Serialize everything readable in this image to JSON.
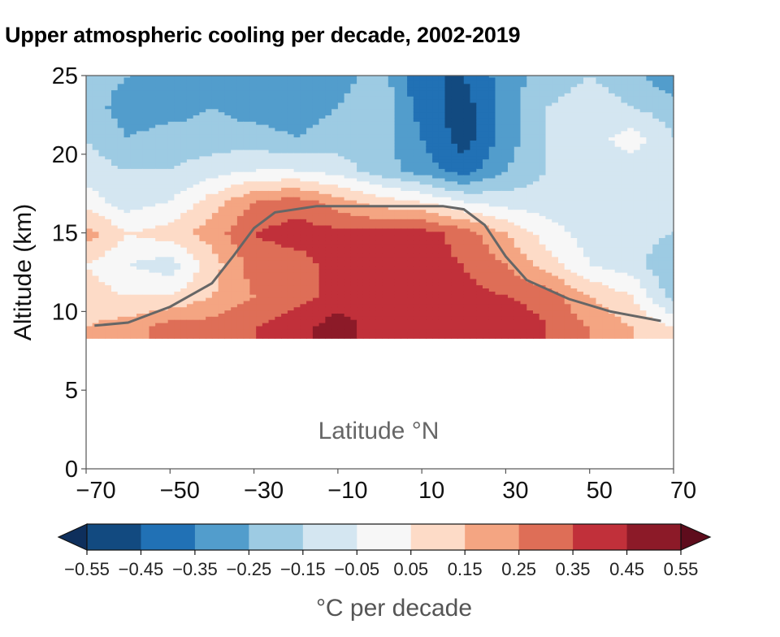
{
  "chart_data": {
    "type": "heatmap",
    "title": "Upper atmospheric cooling per decade, 2002-2019",
    "xlabel": "Latitude °N",
    "ylabel": "Altitude (km)",
    "xlim": [
      -70,
      70
    ],
    "ylim": [
      0,
      25
    ],
    "xticks": [
      "−70",
      "−50",
      "−30",
      "−10",
      "10",
      "30",
      "50",
      "70"
    ],
    "xtick_values": [
      -70,
      -50,
      -30,
      -10,
      10,
      30,
      50,
      70
    ],
    "yticks": [
      "0",
      "5",
      "10",
      "15",
      "20",
      "25"
    ],
    "ytick_values": [
      0,
      5,
      10,
      15,
      20,
      25
    ],
    "data_altitude_min": 8.3,
    "grid": false,
    "latitudes": [
      -70,
      -60,
      -50,
      -40,
      -30,
      -20,
      -10,
      0,
      10,
      20,
      30,
      40,
      50,
      60,
      70
    ],
    "altitudes": [
      25,
      23,
      21,
      19,
      17,
      15,
      13,
      11,
      9
    ],
    "values": [
      [
        -0.2,
        -0.25,
        -0.3,
        -0.3,
        -0.35,
        -0.35,
        -0.3,
        -0.2,
        -0.45,
        -0.45,
        -0.3,
        -0.2,
        -0.15,
        -0.2,
        -0.35
      ],
      [
        -0.2,
        -0.3,
        -0.3,
        -0.25,
        -0.3,
        -0.3,
        -0.25,
        -0.15,
        -0.4,
        -0.5,
        -0.3,
        -0.15,
        -0.1,
        -0.15,
        -0.2
      ],
      [
        -0.15,
        -0.25,
        -0.2,
        -0.2,
        -0.2,
        -0.25,
        -0.2,
        -0.2,
        -0.35,
        -0.5,
        -0.3,
        -0.15,
        -0.1,
        0.0,
        -0.15
      ],
      [
        -0.1,
        -0.15,
        -0.15,
        -0.1,
        -0.05,
        -0.05,
        -0.1,
        -0.2,
        -0.3,
        -0.4,
        -0.25,
        -0.15,
        -0.1,
        -0.1,
        -0.15
      ],
      [
        0.0,
        -0.1,
        -0.05,
        0.1,
        0.25,
        0.3,
        0.2,
        0.1,
        0.05,
        -0.05,
        -0.1,
        -0.1,
        -0.1,
        -0.1,
        -0.15
      ],
      [
        0.2,
        0.05,
        0.1,
        0.2,
        0.35,
        0.4,
        0.38,
        0.38,
        0.4,
        0.3,
        0.15,
        0.0,
        -0.1,
        -0.1,
        -0.15
      ],
      [
        0.05,
        -0.05,
        -0.1,
        0.1,
        0.3,
        0.3,
        0.4,
        0.4,
        0.4,
        0.35,
        0.25,
        0.1,
        -0.05,
        -0.1,
        -0.25
      ],
      [
        0.1,
        0.05,
        0.05,
        0.15,
        0.25,
        0.3,
        0.4,
        0.4,
        0.4,
        0.38,
        0.35,
        0.3,
        0.15,
        0.05,
        -0.2
      ],
      [
        0.15,
        0.2,
        0.3,
        0.3,
        0.35,
        0.42,
        0.5,
        0.4,
        0.4,
        0.4,
        0.45,
        0.35,
        0.25,
        0.15,
        0.05
      ]
    ],
    "tropopause_line": {
      "color": "#666666",
      "lat": [
        -68,
        -60,
        -50,
        -40,
        -35,
        -30,
        -25,
        -15,
        0,
        15,
        20,
        25,
        30,
        35,
        45,
        55,
        67
      ],
      "alt": [
        9.1,
        9.3,
        10.3,
        11.8,
        13.5,
        15.3,
        16.3,
        16.7,
        16.7,
        16.7,
        16.5,
        15.5,
        13.5,
        12,
        10.8,
        10,
        9.4
      ]
    },
    "colorbar": {
      "label": "°C per decade",
      "levels": [
        -0.55,
        -0.45,
        -0.35,
        -0.25,
        -0.15,
        -0.05,
        0.05,
        0.15,
        0.25,
        0.35,
        0.45,
        0.55
      ],
      "tick_labels": [
        "−0.55",
        "−0.45",
        "−0.35",
        "−0.25",
        "−0.15",
        "−0.05",
        "0.05",
        "0.15",
        "0.25",
        "0.35",
        "0.45",
        "0.55"
      ],
      "colors": [
        "#124a80",
        "#2171b5",
        "#529dcc",
        "#9dcbe3",
        "#d4e6f1",
        "#f7f7f7",
        "#fddbc7",
        "#f4a582",
        "#de6e57",
        "#c1303a",
        "#8c1a28"
      ],
      "under_color": "#0e2f5c",
      "over_color": "#5e0c1c",
      "extend": "both"
    }
  }
}
